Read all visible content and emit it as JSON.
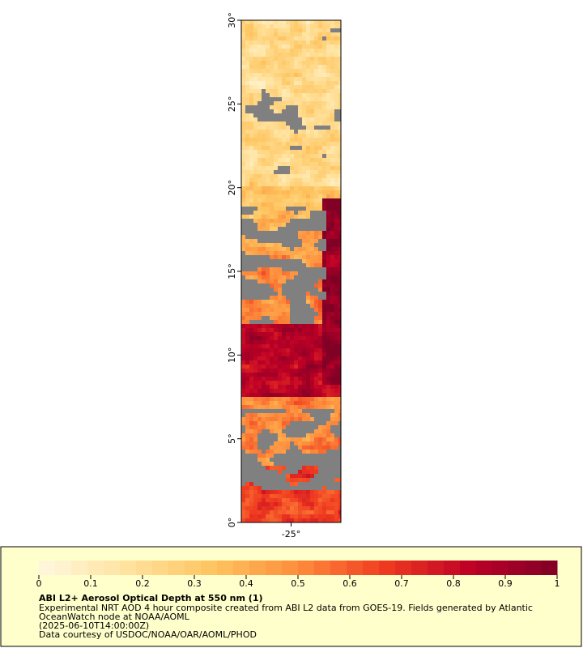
{
  "map": {
    "ylim": [
      0,
      30
    ],
    "yticks": [
      {
        "value": 0,
        "label": "0°"
      },
      {
        "value": 5,
        "label": "5°"
      },
      {
        "value": 10,
        "label": "10°"
      },
      {
        "value": 15,
        "label": "15°"
      },
      {
        "value": 20,
        "label": "20°"
      },
      {
        "value": 25,
        "label": "25°"
      },
      {
        "value": 30,
        "label": "30°"
      }
    ],
    "xlim": [
      -28,
      -22
    ],
    "xticks": [
      {
        "value": -25,
        "label": "-25°"
      }
    ],
    "missing_color": "#808080"
  },
  "colorbar": {
    "range": [
      0,
      1
    ],
    "ticks": [
      0,
      0.1,
      0.2,
      0.3,
      0.4,
      0.5,
      0.6,
      0.7,
      0.8,
      0.9,
      1
    ],
    "colors": [
      "#fff8e0",
      "#ffe3a0",
      "#fec560",
      "#fd8d3c",
      "#f03b20",
      "#bd0026",
      "#800026"
    ]
  },
  "legend": {
    "title": "ABI L2+ Aerosol Optical Depth at 550 nm (1)",
    "lines": [
      "Experimental NRT AOD 4 hour composite created from ABI L2 data from GOES-19. Fields generated by Atlantic",
      "OceanWatch node at NOAA/AOML",
      "(2025-06-10T14:00:00Z)",
      "Data courtesy of USDOC/NOAA/OAR/AOML/PHOD"
    ]
  }
}
